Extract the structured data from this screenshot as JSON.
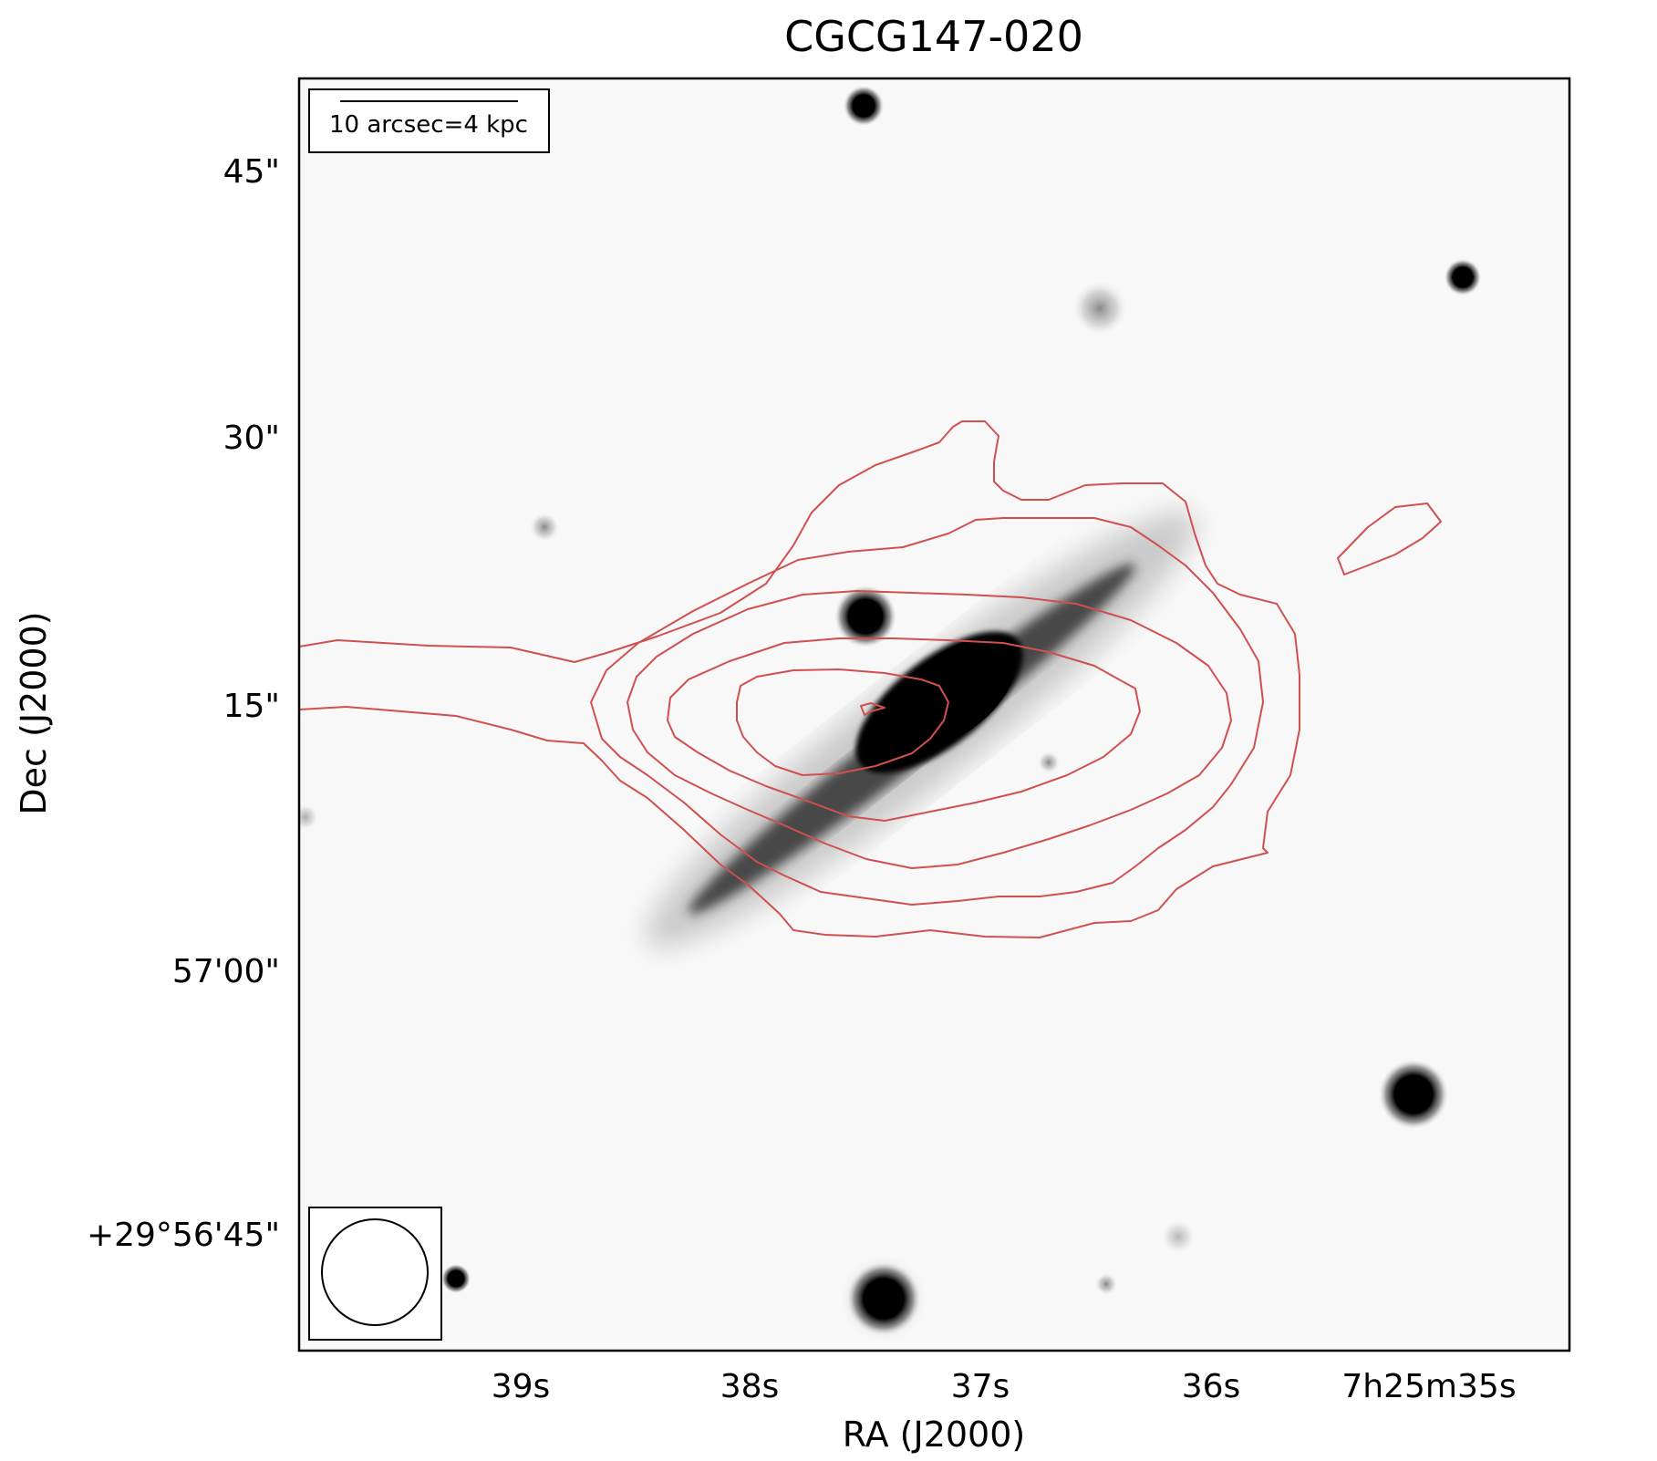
{
  "title": "CGCG147-020",
  "xlabel": "RA (J2000)",
  "ylabel": "Dec (J2000)",
  "xticks": [
    "39s",
    "38s",
    "37s",
    "36s",
    "7h25m35s"
  ],
  "yticks": [
    "45\"",
    "30\"",
    "15\"",
    "57'00\"",
    "+29°56'45\""
  ],
  "scale_bar_label": "10 arcsec=4 kpc",
  "colors": {
    "contour": "#d05050",
    "frame": "#000000",
    "background": "#f8f8f8"
  },
  "layers": {
    "image": "grayscale optical image (inverted): edge-on galaxy with dark bulge, field stars",
    "overlay": "red radio contours centered on galaxy",
    "beam": "circular beam ellipse in lower-left box"
  }
}
